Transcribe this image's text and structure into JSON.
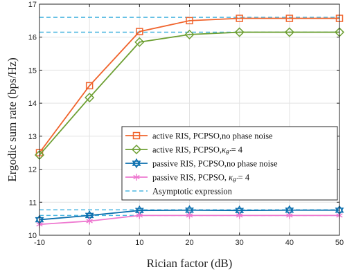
{
  "chart_data": {
    "type": "line",
    "title": "",
    "xlabel": "Rician factor (dB)",
    "ylabel": "Ergodic sum rate (bps/Hz)",
    "xlim": [
      -10,
      50
    ],
    "ylim": [
      10,
      17
    ],
    "xticks": [
      -10,
      0,
      10,
      20,
      30,
      40,
      50
    ],
    "yticks": [
      10,
      11,
      12,
      13,
      14,
      15,
      16,
      17
    ],
    "grid": true,
    "legend_position": "lower-right",
    "x": [
      -10,
      0,
      10,
      20,
      30,
      40,
      50
    ],
    "series": [
      {
        "name": "active RIS, PCPSO,no phase noise",
        "color": "#f0642d",
        "marker": "square",
        "values": [
          12.5,
          14.53,
          16.17,
          16.5,
          16.57,
          16.57,
          16.57
        ]
      },
      {
        "name_parts": [
          "active RIS, PCPSO,",
          "κ",
          "θ̂",
          " = 4"
        ],
        "color": "#6ea034",
        "marker": "diamond",
        "values": [
          12.43,
          14.17,
          15.85,
          16.08,
          16.15,
          16.15,
          16.15
        ]
      },
      {
        "name": "passive RIS, PCPSO,no phase noise",
        "color": "#0b6fae",
        "marker": "hexagram",
        "values": [
          10.47,
          10.6,
          10.75,
          10.76,
          10.75,
          10.76,
          10.76
        ]
      },
      {
        "name_parts": [
          "passive RIS, PCPSO, ",
          "κ",
          "θ̂",
          " = 4"
        ],
        "color": "#ee78d0",
        "marker": "asterisk",
        "values": [
          10.33,
          10.43,
          10.6,
          10.6,
          10.6,
          10.6,
          10.6
        ]
      }
    ],
    "asymptotes": {
      "name": "Asymptotic expression",
      "color": "#4cb6e0",
      "values": [
        16.6,
        16.15,
        10.77,
        10.6
      ]
    }
  }
}
